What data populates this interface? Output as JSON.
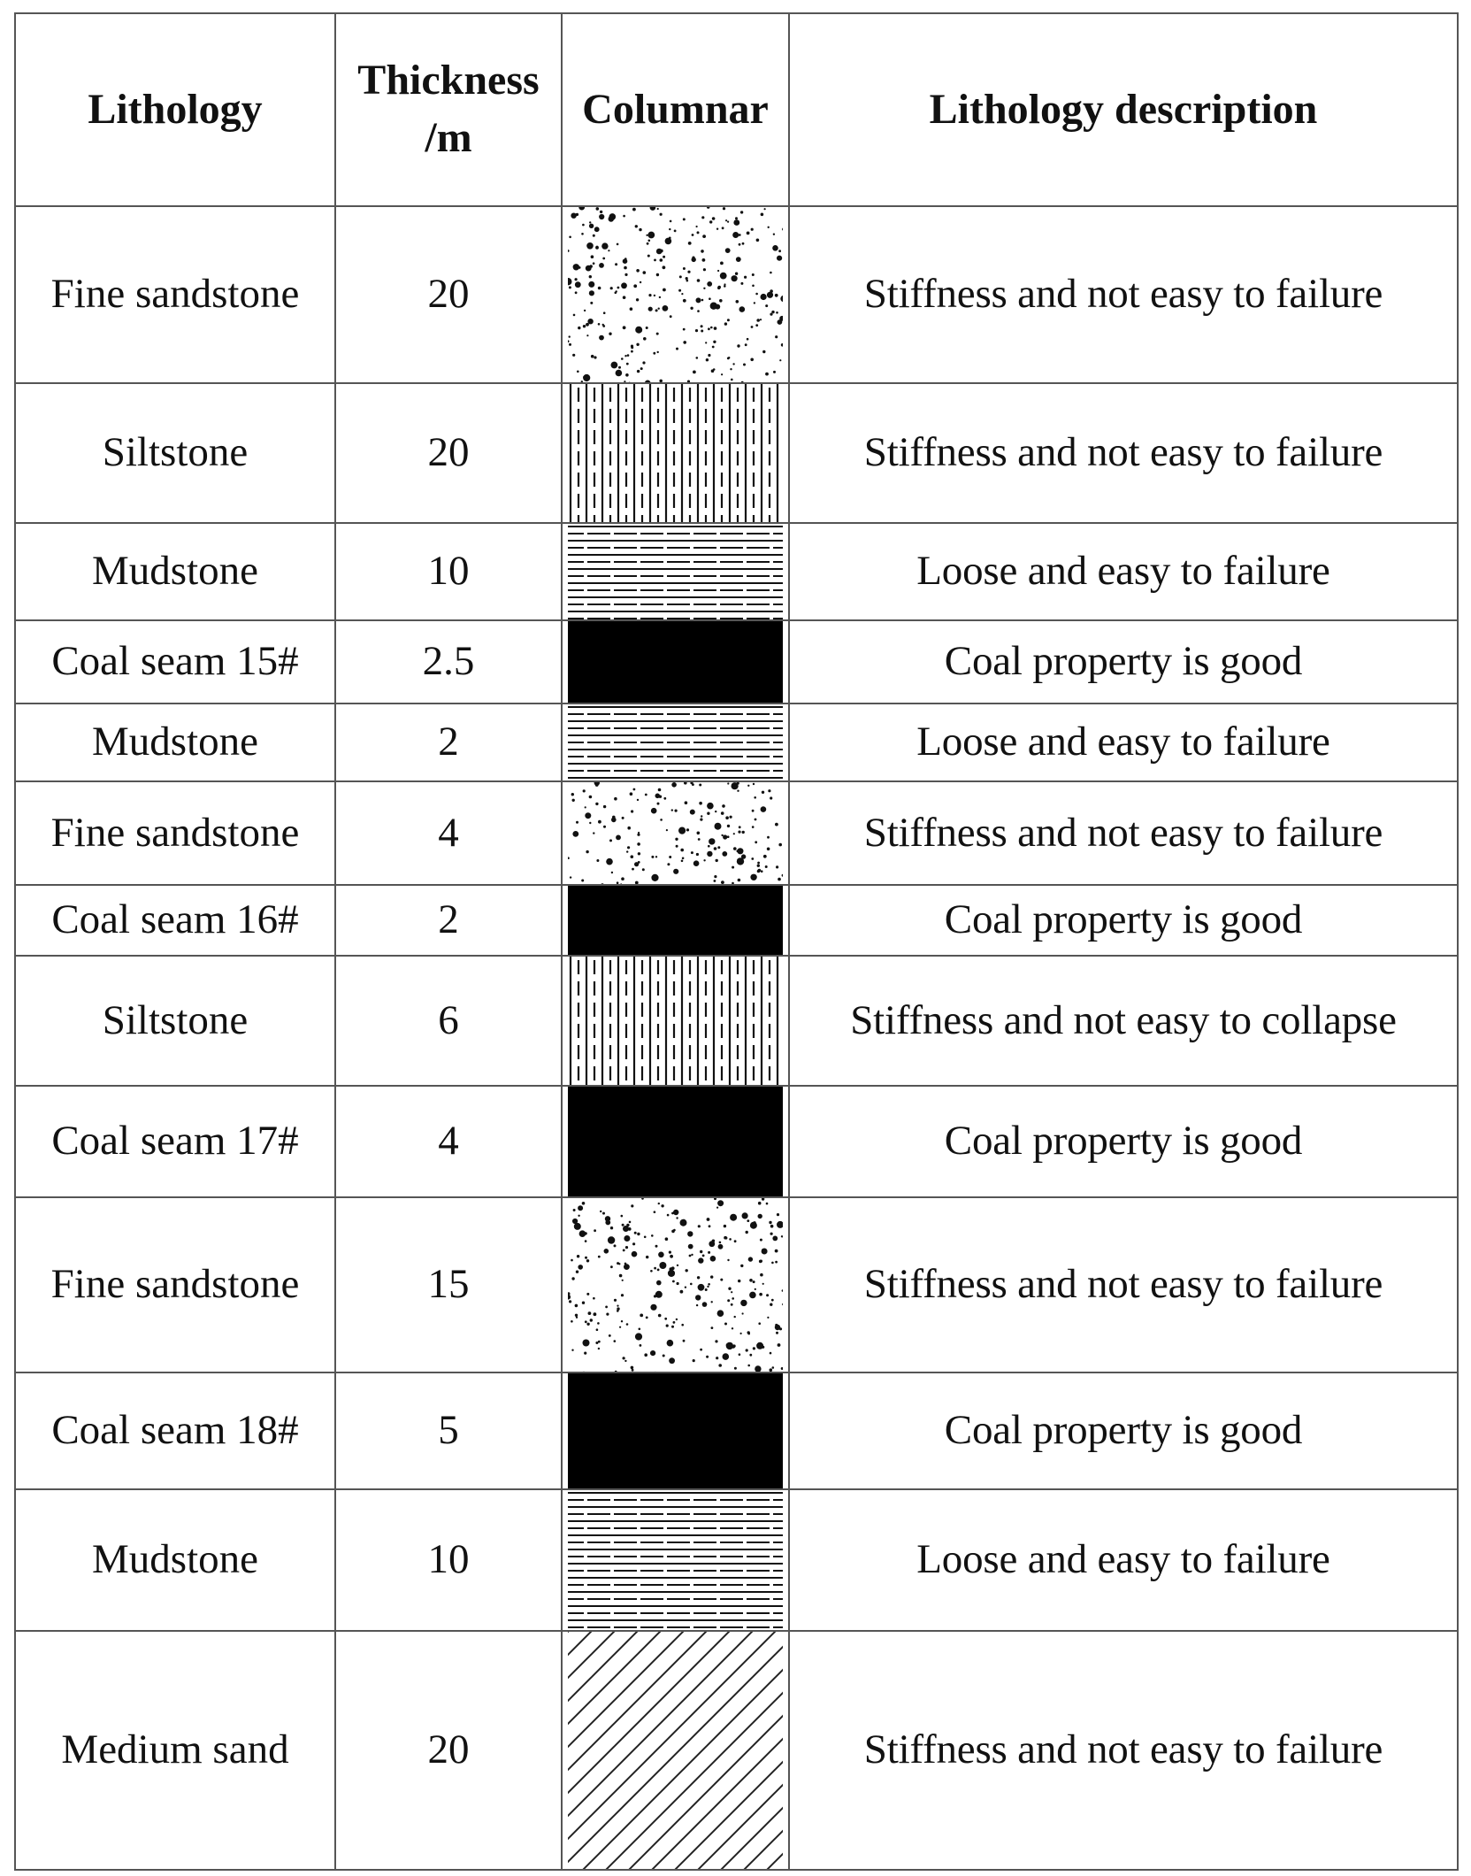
{
  "header": {
    "lithology": "Lithology",
    "thickness": "Thickness /m",
    "columnar": "Columnar",
    "description": "Lithology description"
  },
  "rows": [
    {
      "lithology": "Fine sandstone",
      "thickness": "20",
      "pattern": "fine-sandstone",
      "description": "Stiffness and not easy to failure"
    },
    {
      "lithology": "Siltstone",
      "thickness": "20",
      "pattern": "siltstone",
      "description": "Stiffness and not easy to failure"
    },
    {
      "lithology": "Mudstone",
      "thickness": "10",
      "pattern": "mudstone",
      "description": "Loose and easy to failure"
    },
    {
      "lithology": "Coal seam 15#",
      "thickness": "2.5",
      "pattern": "coal",
      "description": "Coal property is good"
    },
    {
      "lithology": "Mudstone",
      "thickness": "2",
      "pattern": "mudstone",
      "description": "Loose and easy to failure"
    },
    {
      "lithology": "Fine sandstone",
      "thickness": "4",
      "pattern": "fine-sandstone",
      "description": "Stiffness and not easy to failure"
    },
    {
      "lithology": "Coal seam 16#",
      "thickness": "2",
      "pattern": "coal",
      "description": "Coal property is good"
    },
    {
      "lithology": "Siltstone",
      "thickness": "6",
      "pattern": "siltstone",
      "description": "Stiffness and not easy to collapse"
    },
    {
      "lithology": "Coal seam 17#",
      "thickness": "4",
      "pattern": "coal",
      "description": "Coal property is good"
    },
    {
      "lithology": "Fine sandstone",
      "thickness": "15",
      "pattern": "fine-sandstone",
      "description": "Stiffness and not easy to failure"
    },
    {
      "lithology": "Coal seam 18#",
      "thickness": "5",
      "pattern": "coal",
      "description": "Coal property is good"
    },
    {
      "lithology": "Mudstone",
      "thickness": "10",
      "pattern": "mudstone",
      "description": "Loose and easy to failure"
    },
    {
      "lithology": "Medium sand",
      "thickness": "20",
      "pattern": "medium-sand",
      "description": "Stiffness and not easy to failure"
    }
  ]
}
